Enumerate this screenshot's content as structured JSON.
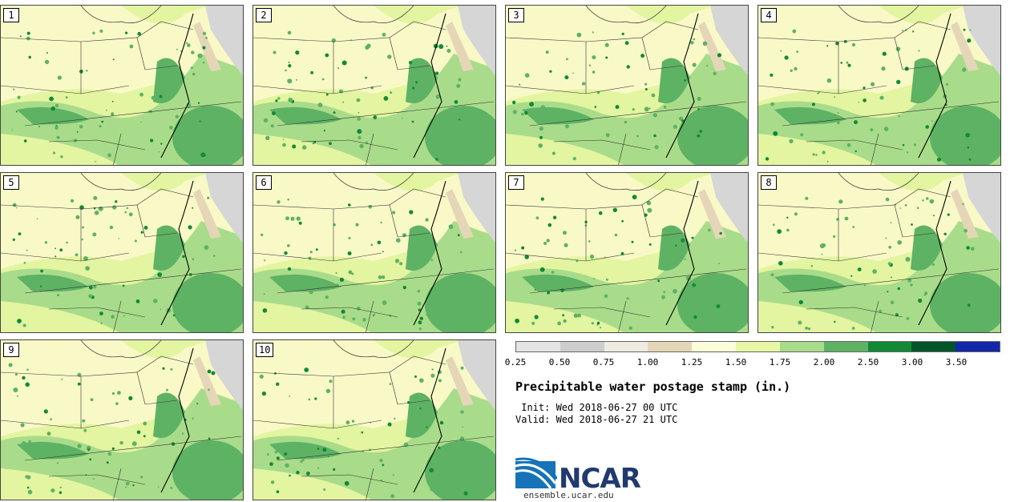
{
  "figure": {
    "title": "Precipitable water postage stamp (in.)",
    "init_line": " Init: Wed 2018-06-27 00 UTC",
    "valid_line": "Valid: Wed 2018-06-27 21 UTC",
    "logo_text": "NCAR",
    "url": "ensemble.ucar.edu"
  },
  "panels": [
    {
      "label": "1"
    },
    {
      "label": "2"
    },
    {
      "label": "3"
    },
    {
      "label": "4"
    },
    {
      "label": "5"
    },
    {
      "label": "6"
    },
    {
      "label": "7"
    },
    {
      "label": "8"
    },
    {
      "label": "9"
    },
    {
      "label": "10"
    }
  ],
  "colorbar": {
    "ticks": [
      "0.25",
      "0.50",
      "0.75",
      "1.00",
      "1.25",
      "1.50",
      "1.75",
      "2.00",
      "2.50",
      "3.00",
      "3.50"
    ],
    "colors": [
      "#e4e4e4",
      "#cdcdcd",
      "#efebe2",
      "#e5d6b7",
      "#fbfcda",
      "#e8f7a5",
      "#a9dc8a",
      "#5eb264",
      "#128a35",
      "#00552a",
      "#1328a8"
    ]
  },
  "map_colors": {
    "background": "#f9f9c8",
    "light_green": "#e3f5a0",
    "mid_green": "#a9dc8a",
    "green": "#5eb264",
    "dark_green": "#128a35",
    "gray": "#d6d6d6",
    "tan": "#e5d6b7"
  }
}
